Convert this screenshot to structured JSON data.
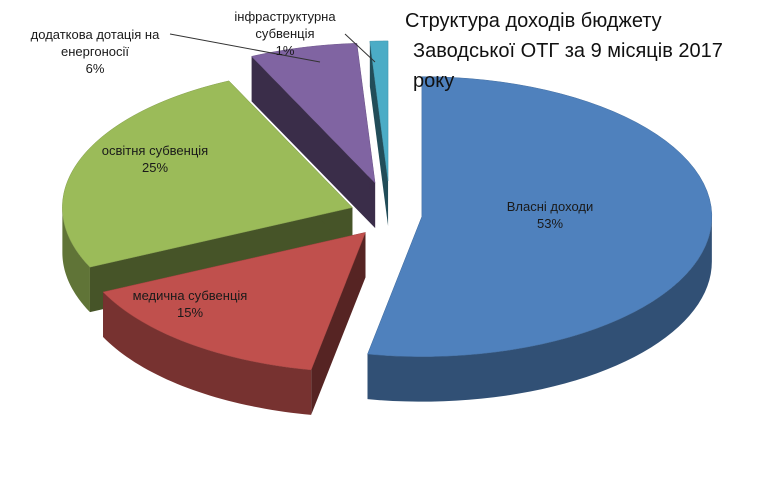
{
  "chart_data": {
    "type": "pie",
    "title": [
      "Структура  доходів бюджету",
      "Заводської ОТГ за 9 місяців 2017 року"
    ],
    "categories": [
      "Власні доходи",
      "медична субвенція",
      "освітня субвенція",
      "додаткова дотація на енергоносії",
      "інфраструктурна субвенція"
    ],
    "values": [
      53,
      15,
      25,
      6,
      1
    ],
    "value_labels": [
      "53%",
      "15%",
      "25%",
      "6%",
      "1%"
    ],
    "colors": [
      "#4f81bd",
      "#c0504d",
      "#9bbb59",
      "#8064a2",
      "#4bacc6"
    ]
  }
}
